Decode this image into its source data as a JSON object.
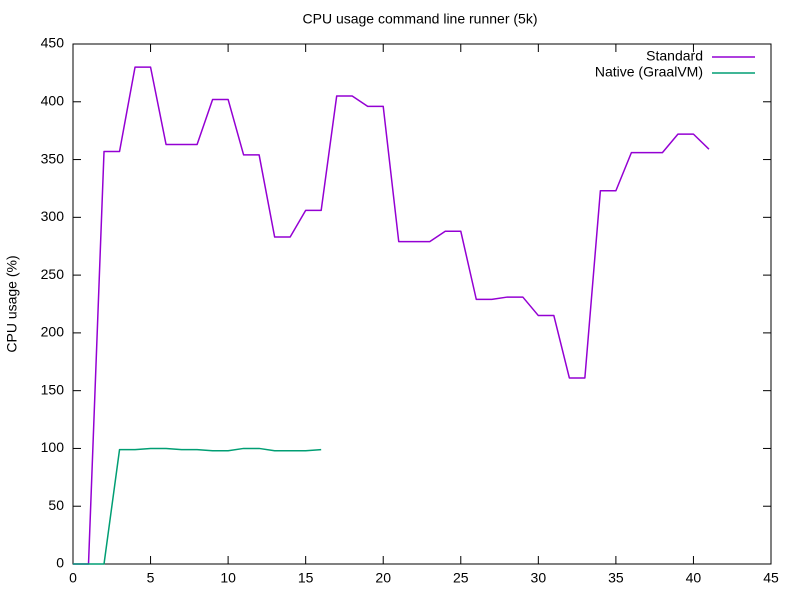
{
  "chart_data": {
    "type": "line",
    "title": "CPU usage command line runner (5k)",
    "y_label": "CPU usage (%)",
    "x": [
      0,
      1,
      2,
      3,
      4,
      5,
      6,
      7,
      8,
      9,
      10,
      11,
      12,
      13,
      14,
      15,
      16,
      17,
      18,
      19,
      20,
      21,
      22,
      23,
      24,
      25,
      26,
      27,
      28,
      29,
      30,
      31,
      32,
      33,
      34,
      35,
      36,
      37,
      38,
      39,
      40,
      41
    ],
    "series": [
      {
        "name": "Standard",
        "color": "#9400d3",
        "values": [
          0,
          0,
          357,
          357,
          430,
          430,
          363,
          363,
          363,
          402,
          402,
          354,
          354,
          283,
          283,
          306,
          306,
          405,
          405,
          396,
          396,
          279,
          279,
          279,
          288,
          288,
          229,
          229,
          231,
          231,
          215,
          215,
          161,
          161,
          323,
          323,
          356,
          356,
          356,
          372,
          372,
          359
        ]
      },
      {
        "name": "Native (GraalVM)",
        "color": "#009e73",
        "values": [
          0,
          0,
          0,
          99,
          99,
          100,
          100,
          99,
          99,
          98,
          98,
          100,
          100,
          98,
          98,
          98,
          99,
          null,
          null,
          null,
          null,
          null,
          null,
          null,
          null,
          null,
          null,
          null,
          null,
          null,
          null,
          null,
          null,
          null,
          null,
          null,
          null,
          null,
          null,
          null,
          null,
          null
        ]
      }
    ],
    "xlim": [
      0,
      45
    ],
    "xticks": [
      0,
      5,
      10,
      15,
      20,
      25,
      30,
      35,
      40,
      45
    ],
    "ylim": [
      0,
      450
    ],
    "yticks": [
      0,
      50,
      100,
      150,
      200,
      250,
      300,
      350,
      400,
      450
    ],
    "grid": false,
    "legend": "top-right"
  }
}
